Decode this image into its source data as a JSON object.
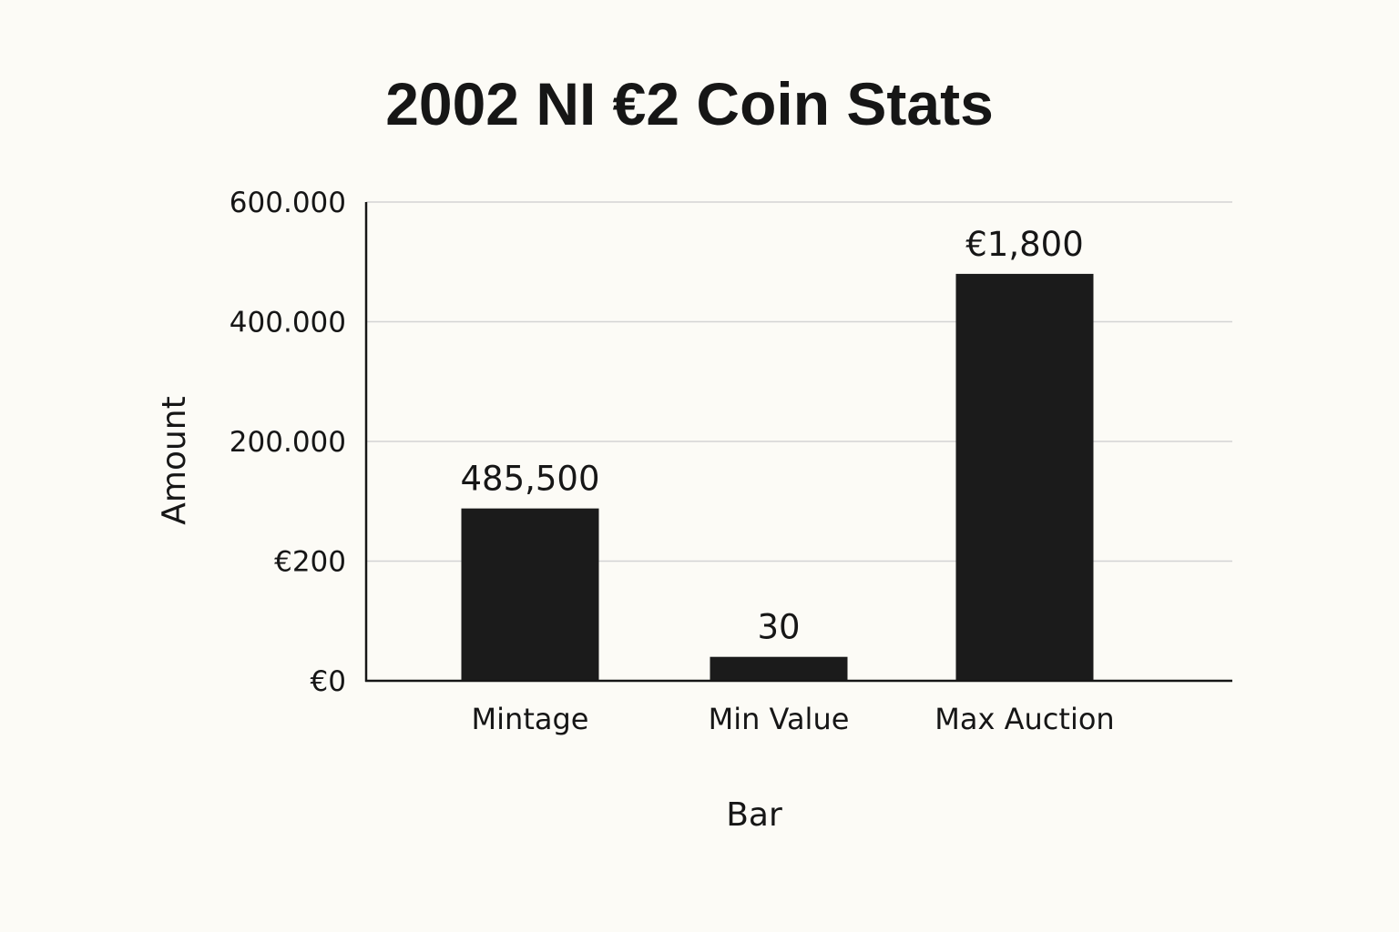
{
  "chart_data": {
    "type": "bar",
    "title": "2002 NI €2 Coin Stats",
    "xlabel": "Bar",
    "ylabel": "Amount",
    "categories": [
      "Mintage",
      "Min Value",
      "Max Auction"
    ],
    "values": [
      485500,
      30,
      1800
    ],
    "data_labels": [
      "485,500",
      "30",
      "€1,800"
    ],
    "y_ticks": [
      "€0",
      "€200",
      "200.000",
      "400.000",
      "600.000"
    ],
    "grid": true,
    "legend": "none",
    "colors": {
      "bar": "#1b1b1b",
      "grid": "#d3d3d3",
      "axis": "#161616",
      "background": "#fcfbf6"
    }
  }
}
